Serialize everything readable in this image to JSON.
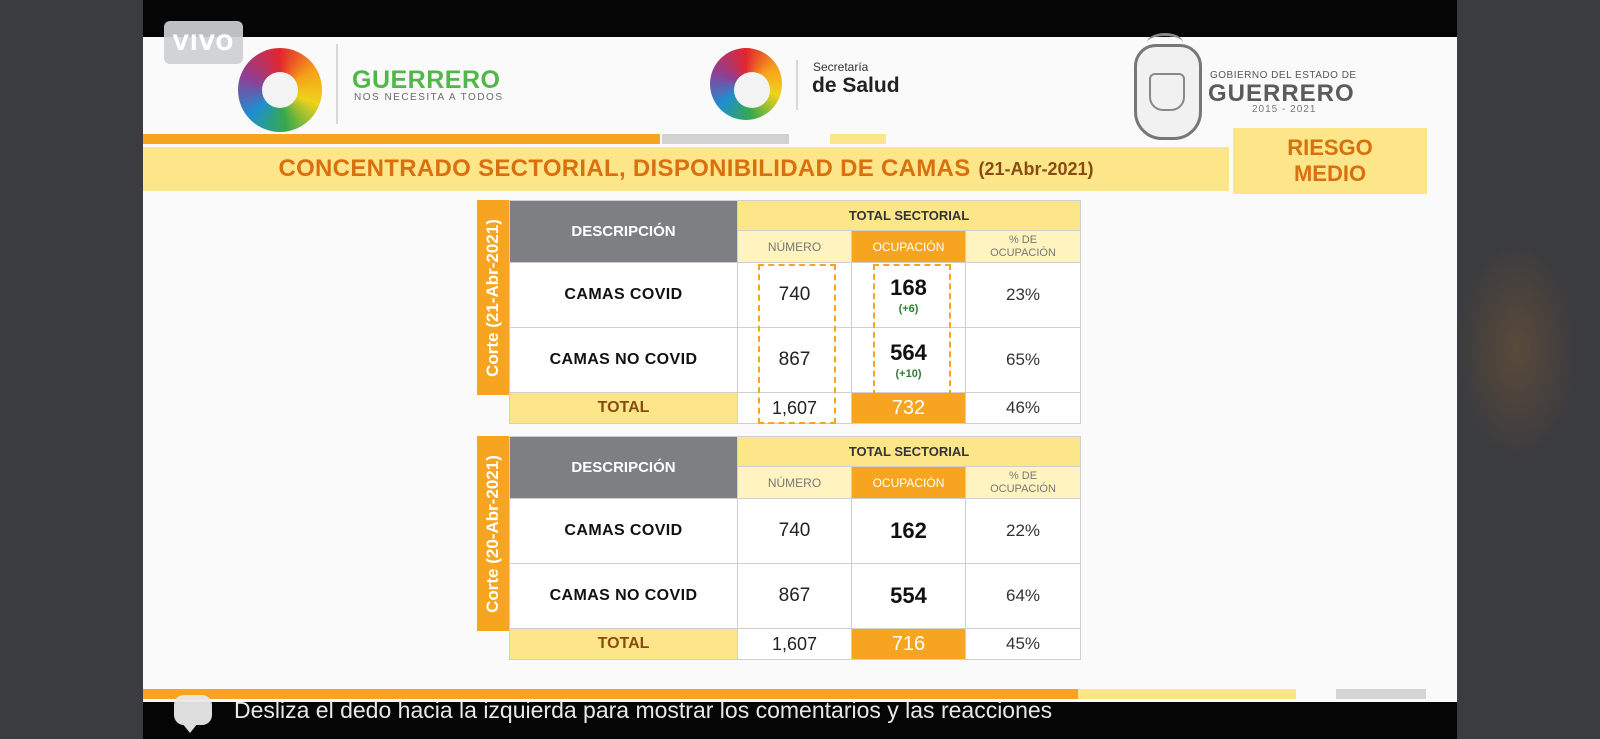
{
  "live_badge": "VIVO",
  "logos": {
    "guerrero_main": "GUERRERO",
    "guerrero_sub": "NOS NECESITA A TODOS",
    "salud_small": "Secretaría",
    "salud_big": "de Salud",
    "gob_small": "GOBIERNO DEL ESTADO DE",
    "gob_big": "GUERRERO",
    "gob_years": "2015 - 2021"
  },
  "header": {
    "title": "CONCENTRADO SECTORIAL, DISPONIBILIDAD DE CAMAS",
    "date": "(21-Abr-2021)",
    "risk_line1": "RIESGO",
    "risk_line2": "MEDIO"
  },
  "tables": [
    {
      "side_label": "Corte (21-Abr-2021)",
      "col_desc": "DESCRIPCIÓN",
      "group_header": "TOTAL SECTORIAL",
      "col_numero": "NÚMERO",
      "col_ocupacion": "OCUPACIÓN",
      "col_pct_line1": "% DE",
      "col_pct_line2": "OCUPACIÓN",
      "rows": [
        {
          "label": "CAMAS COVID",
          "numero": "740",
          "ocupacion": "168",
          "delta": "(+6)",
          "pct": "23%"
        },
        {
          "label": "CAMAS NO COVID",
          "numero": "867",
          "ocupacion": "564",
          "delta": "(+10)",
          "pct": "65%"
        }
      ],
      "total": {
        "label": "TOTAL",
        "numero": "1,607",
        "ocupacion": "732",
        "pct": "46%"
      }
    },
    {
      "side_label": "Corte (20-Abr-2021)",
      "col_desc": "DESCRIPCIÓN",
      "group_header": "TOTAL SECTORIAL",
      "col_numero": "NÚMERO",
      "col_ocupacion": "OCUPACIÓN",
      "col_pct_line1": "% DE",
      "col_pct_line2": "OCUPACIÓN",
      "rows": [
        {
          "label": "CAMAS COVID",
          "numero": "740",
          "ocupacion": "162",
          "pct": "22%"
        },
        {
          "label": "CAMAS NO COVID",
          "numero": "867",
          "ocupacion": "554",
          "pct": "64%"
        }
      ],
      "total": {
        "label": "TOTAL",
        "numero": "1,607",
        "ocupacion": "716",
        "pct": "45%"
      }
    }
  ],
  "comment_hint": "Desliza el dedo hacia la izquierda para mostrar los comentarios y las reacciones",
  "colors": {
    "accent_orange": "#f7a520",
    "title_orange": "#d9700f",
    "band_yellow": "#fde68a",
    "header_gray": "#7d7f82",
    "delta_green": "#2e7d32"
  }
}
